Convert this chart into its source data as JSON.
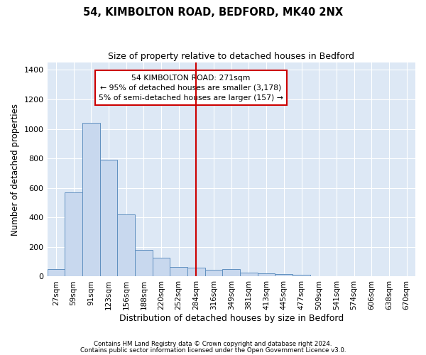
{
  "title": "54, KIMBOLTON ROAD, BEDFORD, MK40 2NX",
  "subtitle": "Size of property relative to detached houses in Bedford",
  "xlabel": "Distribution of detached houses by size in Bedford",
  "ylabel": "Number of detached properties",
  "bar_color": "#c8d8ee",
  "bar_edgecolor": "#6090c0",
  "background_color": "#dde8f5",
  "grid_color": "#ffffff",
  "figure_bg": "#ffffff",
  "categories": [
    "27sqm",
    "59sqm",
    "91sqm",
    "123sqm",
    "156sqm",
    "188sqm",
    "220sqm",
    "252sqm",
    "284sqm",
    "316sqm",
    "349sqm",
    "381sqm",
    "413sqm",
    "445sqm",
    "477sqm",
    "509sqm",
    "541sqm",
    "574sqm",
    "606sqm",
    "638sqm",
    "670sqm"
  ],
  "values": [
    50,
    570,
    1040,
    790,
    420,
    180,
    125,
    65,
    60,
    45,
    50,
    28,
    22,
    18,
    10,
    0,
    0,
    0,
    0,
    0,
    0
  ],
  "ylim": [
    0,
    1450
  ],
  "yticks": [
    0,
    200,
    400,
    600,
    800,
    1000,
    1200,
    1400
  ],
  "vline_position": 8.0,
  "vline_color": "#cc0000",
  "annotation_text": "54 KIMBOLTON ROAD: 271sqm\n← 95% of detached houses are smaller (3,178)\n5% of semi-detached houses are larger (157) →",
  "annotation_box_color": "#cc0000",
  "footer_line1": "Contains HM Land Registry data © Crown copyright and database right 2024.",
  "footer_line2": "Contains public sector information licensed under the Open Government Licence v3.0."
}
